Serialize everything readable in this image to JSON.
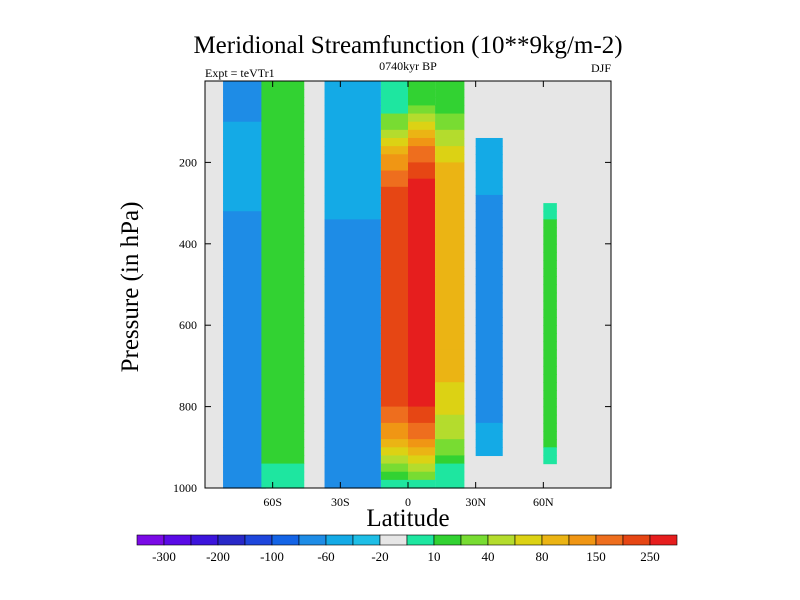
{
  "chart_data": {
    "type": "heatmap",
    "title": "Meridional Streamfunction (10**9kg/m-2)",
    "left_label": "Expt = teVTr1",
    "center_label": "0740kyr BP",
    "right_label": "DJF",
    "xlabel": "Latitude",
    "ylabel": "Pressure (in hPa)",
    "xlim": [
      -90,
      90
    ],
    "ylim": [
      1000,
      0
    ],
    "x_ticks": [
      {
        "value": -60,
        "label": "60S"
      },
      {
        "value": -30,
        "label": "30S"
      },
      {
        "value": 0,
        "label": "0"
      },
      {
        "value": 30,
        "label": "30N"
      },
      {
        "value": 60,
        "label": "60N"
      }
    ],
    "y_ticks": [
      {
        "value": 200,
        "label": "200"
      },
      {
        "value": 400,
        "label": "400"
      },
      {
        "value": 600,
        "label": "600"
      },
      {
        "value": 800,
        "label": "800"
      },
      {
        "value": 1000,
        "label": "1000"
      }
    ],
    "colorbar": {
      "colors": [
        "#7a0ae6",
        "#5a0ae6",
        "#3c14dc",
        "#2828c8",
        "#1e46dc",
        "#1464e6",
        "#1e8ce6",
        "#14aae6",
        "#1ebee6",
        "#e6e6e6",
        "#1ee6a0",
        "#32d232",
        "#78dc32",
        "#b4dc2d",
        "#dcd214",
        "#ebb414",
        "#f09614",
        "#ee6e1e",
        "#e64614",
        "#e61e1e"
      ],
      "tick_labels": [
        "-300",
        "-200",
        "-100",
        "-60",
        "-20",
        "10",
        "40",
        "80",
        "150",
        "250"
      ],
      "tick_boundaries": [
        1,
        3,
        5,
        7,
        9,
        11,
        13,
        15,
        17,
        19
      ]
    },
    "cells": [
      {
        "lat": [
          -82,
          -63
        ],
        "p": [
          0,
          1000
        ],
        "values": [
          6,
          6,
          6,
          6,
          6,
          7,
          7,
          7,
          7,
          7,
          7,
          7,
          7,
          7,
          7,
          7,
          6,
          6,
          6,
          6,
          6,
          6,
          6,
          6,
          6,
          6,
          6,
          6,
          6,
          6,
          6,
          6,
          6,
          6,
          6,
          6,
          6,
          6,
          6,
          6,
          6,
          6,
          6,
          6,
          6,
          6,
          6,
          6,
          6,
          6
        ]
      },
      {
        "lat": [
          -65,
          -46
        ],
        "p": [
          0,
          1000
        ],
        "values": [
          11,
          11,
          11,
          11,
          11,
          11,
          11,
          11,
          11,
          11,
          11,
          11,
          11,
          11,
          11,
          11,
          11,
          11,
          11,
          11,
          11,
          11,
          11,
          11,
          11,
          11,
          11,
          11,
          11,
          11,
          11,
          11,
          11,
          11,
          11,
          11,
          11,
          11,
          11,
          11,
          11,
          11,
          11,
          11,
          11,
          11,
          11,
          10,
          10,
          10
        ]
      },
      {
        "lat": [
          -37,
          -12
        ],
        "p": [
          0,
          1000
        ],
        "values": [
          7,
          7,
          7,
          7,
          7,
          7,
          7,
          7,
          7,
          7,
          7,
          7,
          7,
          7,
          7,
          7,
          7,
          6,
          6,
          6,
          6,
          6,
          6,
          6,
          6,
          6,
          6,
          6,
          6,
          6,
          6,
          6,
          6,
          6,
          6,
          6,
          6,
          6,
          6,
          6,
          6,
          6,
          6,
          6,
          6,
          6,
          6,
          6,
          6,
          6
        ]
      },
      {
        "lat": [
          -12,
          0
        ],
        "p": [
          0,
          1000
        ],
        "values": [
          10,
          10,
          10,
          10,
          12,
          12,
          13,
          14,
          15,
          16,
          16,
          17,
          17,
          18,
          18,
          18,
          18,
          18,
          18,
          18,
          18,
          18,
          18,
          18,
          18,
          18,
          18,
          18,
          18,
          18,
          18,
          18,
          18,
          18,
          18,
          18,
          18,
          18,
          18,
          18,
          17,
          17,
          16,
          16,
          15,
          14,
          13,
          12,
          11,
          10
        ]
      },
      {
        "lat": [
          0,
          12
        ],
        "p": [
          0,
          1000
        ],
        "values": [
          11,
          11,
          11,
          12,
          13,
          14,
          15,
          16,
          17,
          17,
          18,
          18,
          19,
          19,
          19,
          19,
          19,
          19,
          19,
          19,
          19,
          19,
          19,
          19,
          19,
          19,
          19,
          19,
          19,
          19,
          19,
          19,
          19,
          19,
          19,
          19,
          19,
          19,
          19,
          19,
          18,
          18,
          17,
          17,
          16,
          15,
          14,
          13,
          12,
          10
        ]
      },
      {
        "lat": [
          12,
          25
        ],
        "p": [
          0,
          1000
        ],
        "values": [
          11,
          11,
          11,
          11,
          12,
          12,
          13,
          13,
          14,
          14,
          15,
          15,
          15,
          15,
          15,
          15,
          15,
          15,
          15,
          15,
          15,
          15,
          15,
          15,
          15,
          15,
          15,
          15,
          15,
          15,
          15,
          15,
          15,
          15,
          15,
          15,
          15,
          14,
          14,
          14,
          14,
          13,
          13,
          13,
          12,
          12,
          11,
          10,
          10,
          10
        ]
      },
      {
        "lat": [
          30,
          42
        ],
        "p": [
          0,
          1000
        ],
        "values": [
          9,
          9,
          9,
          9,
          9,
          9,
          9,
          7,
          7,
          7,
          7,
          7,
          7,
          7,
          6,
          6,
          6,
          6,
          6,
          6,
          6,
          6,
          6,
          6,
          6,
          6,
          6,
          6,
          6,
          6,
          6,
          6,
          6,
          6,
          6,
          6,
          6,
          6,
          6,
          6,
          6,
          6,
          7,
          7,
          7,
          7,
          9,
          9,
          9,
          9
        ]
      },
      {
        "lat": [
          60,
          66
        ],
        "p": [
          0,
          1000
        ],
        "values": [
          9,
          9,
          9,
          9,
          9,
          9,
          9,
          9,
          9,
          9,
          9,
          9,
          9,
          9,
          9,
          10,
          10,
          11,
          11,
          11,
          11,
          11,
          11,
          11,
          11,
          11,
          11,
          11,
          11,
          11,
          11,
          11,
          11,
          11,
          11,
          11,
          11,
          11,
          11,
          11,
          11,
          11,
          11,
          11,
          11,
          10,
          10,
          9,
          9,
          9
        ]
      },
      {
        "lat": [
          74,
          86
        ],
        "p": [
          0,
          1000
        ],
        "values": [
          9,
          9,
          9,
          9,
          9,
          9,
          9,
          9,
          9,
          9,
          9,
          9,
          9,
          9,
          9,
          9,
          9,
          9,
          9,
          9,
          9,
          9,
          9,
          9,
          9,
          9,
          9,
          9,
          9,
          9,
          9,
          9,
          9,
          9,
          9,
          9,
          9,
          9,
          9,
          9,
          9,
          9,
          9,
          9,
          9,
          9,
          9,
          9,
          9,
          9
        ]
      }
    ]
  }
}
